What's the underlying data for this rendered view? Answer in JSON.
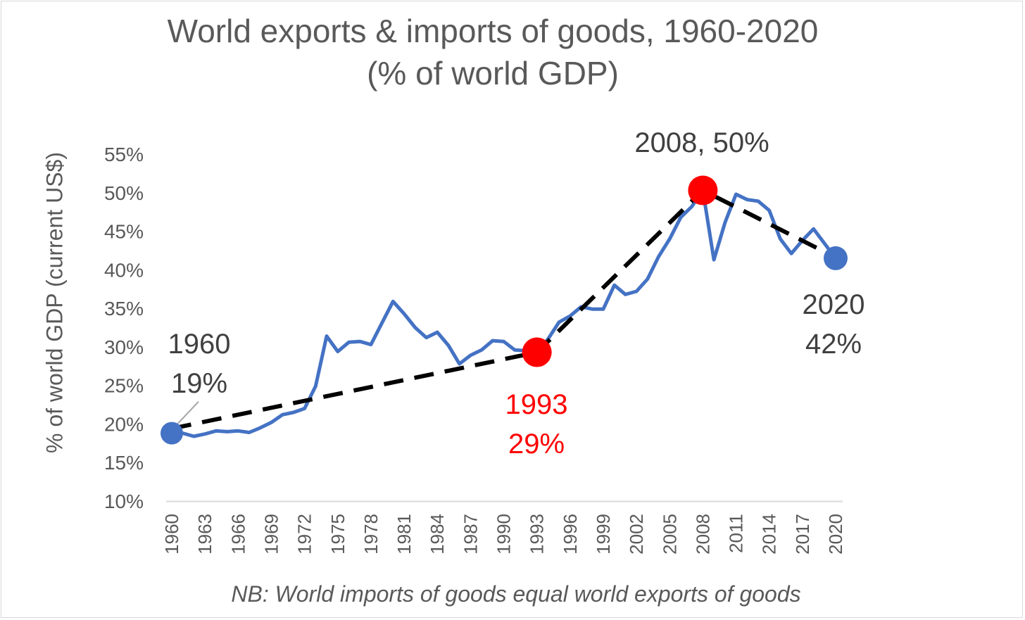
{
  "title_line1": "World exports & imports of goods, 1960-2020",
  "title_line2": "(% of world GDP)",
  "ylabel": "% of world GDP (current US$)",
  "note": "NB: World imports of goods equal world exports of goods",
  "chart_data": {
    "type": "line",
    "title": "World exports & imports of goods, 1960-2020 (% of world GDP)",
    "ylabel": "% of world GDP (current US$)",
    "xlabel": "",
    "ylim": [
      10,
      55
    ],
    "yticks": [
      "10%",
      "15%",
      "20%",
      "25%",
      "30%",
      "35%",
      "40%",
      "45%",
      "50%",
      "55%"
    ],
    "xticks": [
      "1960",
      "1963",
      "1966",
      "1969",
      "1972",
      "1975",
      "1978",
      "1981",
      "1984",
      "1987",
      "1990",
      "1993",
      "1996",
      "1999",
      "2002",
      "2005",
      "2008",
      "2011",
      "2014",
      "2017",
      "2020"
    ],
    "x": [
      1960,
      1961,
      1962,
      1963,
      1964,
      1965,
      1966,
      1967,
      1968,
      1969,
      1970,
      1971,
      1972,
      1973,
      1974,
      1975,
      1976,
      1977,
      1978,
      1979,
      1980,
      1981,
      1982,
      1983,
      1984,
      1985,
      1986,
      1987,
      1988,
      1989,
      1990,
      1991,
      1992,
      1993,
      1994,
      1995,
      1996,
      1997,
      1998,
      1999,
      2000,
      2001,
      2002,
      2003,
      2004,
      2005,
      2006,
      2007,
      2008,
      2009,
      2010,
      2011,
      2012,
      2013,
      2014,
      2015,
      2016,
      2017,
      2018,
      2019,
      2020
    ],
    "series": [
      {
        "values": [
          18.8,
          18.8,
          18.4,
          18.7,
          19.1,
          19.0,
          19.1,
          18.9,
          19.5,
          20.2,
          21.2,
          21.5,
          22.0,
          24.9,
          31.4,
          29.4,
          30.6,
          30.7,
          30.3,
          33.1,
          35.9,
          34.3,
          32.5,
          31.2,
          31.9,
          30.2,
          27.8,
          28.9,
          29.6,
          30.8,
          30.7,
          29.6,
          29.5,
          29.3,
          31.0,
          33.2,
          34.0,
          35.2,
          34.9,
          34.9,
          38.0,
          36.8,
          37.2,
          38.8,
          41.7,
          44.0,
          46.8,
          48.2,
          50.3,
          41.3,
          46.1,
          49.8,
          49.1,
          48.9,
          47.7,
          44.0,
          42.1,
          43.8,
          45.3,
          43.4,
          41.5
        ],
        "color": "#4472c4"
      }
    ],
    "trend": {
      "x": [
        1960,
        1993,
        2008,
        2020
      ],
      "y": [
        19.4,
        29.3,
        50.3,
        41.6
      ],
      "style": "dashed",
      "color": "#000000"
    },
    "markers": [
      {
        "x": 1960,
        "y": 18.8,
        "color": "#4472c4"
      },
      {
        "x": 1993,
        "y": 29.3,
        "color": "#ff0000"
      },
      {
        "x": 2008,
        "y": 50.3,
        "color": "#ff0000"
      },
      {
        "x": 2020,
        "y": 41.5,
        "color": "#4472c4"
      }
    ],
    "annotations": [
      {
        "lines": [
          "1960",
          "19%"
        ],
        "color": "#404040"
      },
      {
        "lines": [
          "1993",
          "29%"
        ],
        "color": "#ff0000"
      },
      {
        "lines": [
          "2008, 50%"
        ],
        "color": "#404040"
      },
      {
        "lines": [
          "2020",
          "42%"
        ],
        "color": "#404040"
      }
    ]
  }
}
